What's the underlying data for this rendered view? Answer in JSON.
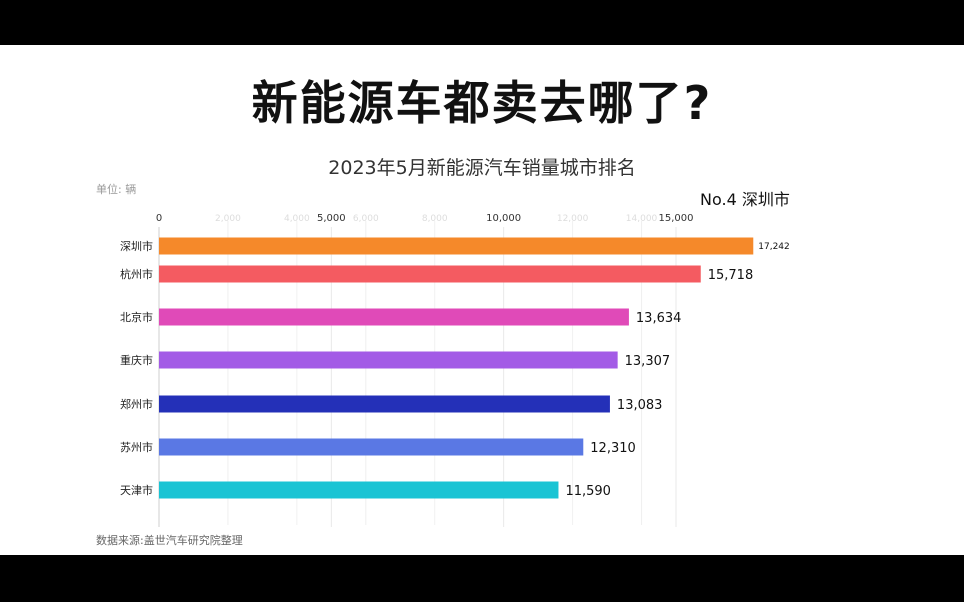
{
  "header": {
    "title": "新能源车都卖去哪了?",
    "subtitle": "2023年5月新能源汽车销量城市排名",
    "unit": "单位: 辆",
    "rank_label": "No.4  深圳市"
  },
  "footer": {
    "source": "数据来源:盖世汽车研究院整理"
  },
  "chart_data": {
    "type": "bar",
    "orientation": "horizontal",
    "title": "2023年5月新能源汽车销量城市排名",
    "categories": [
      "深圳市",
      "杭州市",
      "北京市",
      "重庆市",
      "郑州市",
      "苏州市",
      "天津市"
    ],
    "values": [
      17242,
      15718,
      13634,
      13307,
      13083,
      12310,
      11590
    ],
    "value_labels": [
      "17,242",
      "15,718",
      "13,634",
      "13,307",
      "13,083",
      "12,310",
      "11,590"
    ],
    "colors": [
      "#F5892A",
      "#F45B61",
      "#E04AB8",
      "#A35BE6",
      "#2430B8",
      "#5A78E4",
      "#1AC4D4"
    ],
    "x_ticks": [
      0,
      5000,
      10000,
      15000
    ],
    "x_tick_labels": [
      "0",
      "5,000",
      "10,000",
      "15,000"
    ],
    "ghost_ticks": [
      2000,
      4000,
      6000,
      8000,
      12000,
      14000
    ],
    "ghost_tick_labels": [
      "2,000",
      "4,000",
      "6,000",
      "8,000",
      "12,000",
      "14,000"
    ],
    "xlim": [
      0,
      15000
    ],
    "grid": true
  }
}
